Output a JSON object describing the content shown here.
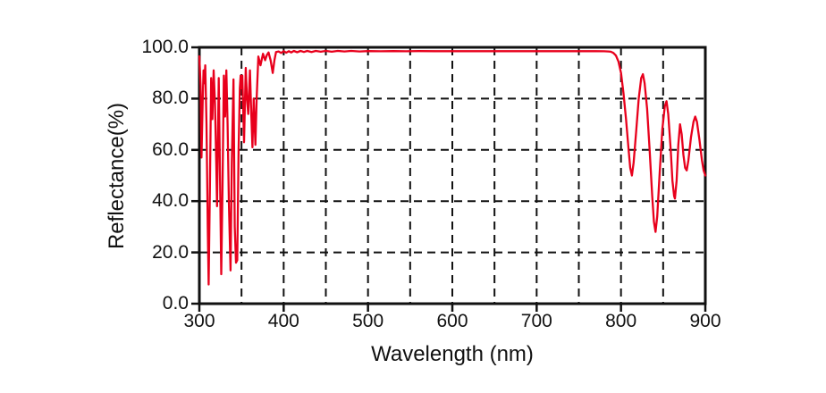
{
  "figure": {
    "background_color": "#ffffff",
    "axis_color": "#111111",
    "text_color": "#111111"
  },
  "chart_data": {
    "type": "line",
    "title": "",
    "xlabel": "Wavelength (nm)",
    "ylabel": "Reflectance(%)",
    "xlim": [
      300,
      900
    ],
    "ylim": [
      0,
      100
    ],
    "x_major_ticks": [
      300,
      400,
      500,
      600,
      700,
      800,
      900
    ],
    "x_tick_labels": [
      "300",
      "400",
      "500",
      "600",
      "700",
      "800",
      "900"
    ],
    "x_gridlines": [
      350,
      400,
      450,
      500,
      550,
      600,
      650,
      700,
      750,
      800,
      850
    ],
    "y_major_ticks": [
      0,
      20,
      40,
      60,
      80,
      100
    ],
    "y_tick_labels": [
      "0.0",
      "20.0",
      "40.0",
      "60.0",
      "80.0",
      "100.0"
    ],
    "y_gridlines": [
      20,
      40,
      60,
      80
    ],
    "grid_style": "dashed",
    "legend": "none",
    "series": [
      {
        "name": "reflectance",
        "color": "#e8001c",
        "points": [
          [
            300,
            96.5
          ],
          [
            301.5,
            85
          ],
          [
            302.5,
            57
          ],
          [
            304,
            80
          ],
          [
            305,
            91
          ],
          [
            306,
            86
          ],
          [
            307,
            93
          ],
          [
            308.5,
            70
          ],
          [
            310,
            30
          ],
          [
            311,
            7.5
          ],
          [
            312.5,
            45
          ],
          [
            314,
            88
          ],
          [
            315.5,
            72
          ],
          [
            317,
            91
          ],
          [
            318.5,
            78
          ],
          [
            320,
            55
          ],
          [
            321,
            38
          ],
          [
            322,
            65
          ],
          [
            323,
            88
          ],
          [
            324.5,
            50
          ],
          [
            326,
            11.5
          ],
          [
            327.5,
            45
          ],
          [
            329,
            89
          ],
          [
            330.5,
            73
          ],
          [
            332,
            91
          ],
          [
            333.5,
            70
          ],
          [
            335,
            40
          ],
          [
            337,
            13
          ],
          [
            338.5,
            55
          ],
          [
            340.5,
            87.5
          ],
          [
            342,
            30
          ],
          [
            343.5,
            16
          ],
          [
            345,
            17
          ],
          [
            346.5,
            60
          ],
          [
            348,
            84
          ],
          [
            349,
            89
          ],
          [
            350,
            84
          ],
          [
            351,
            89
          ],
          [
            353,
            63
          ],
          [
            355,
            92
          ],
          [
            356.5,
            80
          ],
          [
            358,
            74
          ],
          [
            360,
            91
          ],
          [
            361.5,
            75
          ],
          [
            363,
            61
          ],
          [
            364.5,
            80
          ],
          [
            366.5,
            62
          ],
          [
            368,
            80
          ],
          [
            370,
            96.4
          ],
          [
            372.5,
            93
          ],
          [
            375.5,
            97.5
          ],
          [
            378,
            95
          ],
          [
            380,
            97
          ],
          [
            382,
            98
          ],
          [
            384.5,
            95
          ],
          [
            387,
            90
          ],
          [
            389,
            95
          ],
          [
            391,
            98.2
          ],
          [
            394,
            98.4
          ],
          [
            397,
            97.8
          ],
          [
            400,
            98.5
          ],
          [
            403,
            97.9
          ],
          [
            406,
            98.5
          ],
          [
            409,
            98.0
          ],
          [
            412,
            98.6
          ],
          [
            416,
            98.1
          ],
          [
            420,
            98.6
          ],
          [
            424,
            98.2
          ],
          [
            428,
            98.6
          ],
          [
            433,
            98.2
          ],
          [
            438,
            98.6
          ],
          [
            444,
            98.3
          ],
          [
            450,
            98.6
          ],
          [
            457,
            98.3
          ],
          [
            464,
            98.6
          ],
          [
            472,
            98.4
          ],
          [
            480,
            98.6
          ],
          [
            490,
            98.4
          ],
          [
            500,
            98.55
          ],
          [
            515,
            98.45
          ],
          [
            530,
            98.55
          ],
          [
            545,
            98.45
          ],
          [
            560,
            98.55
          ],
          [
            580,
            98.5
          ],
          [
            600,
            98.5
          ],
          [
            625,
            98.5
          ],
          [
            650,
            98.5
          ],
          [
            675,
            98.5
          ],
          [
            700,
            98.5
          ],
          [
            725,
            98.5
          ],
          [
            750,
            98.5
          ],
          [
            770,
            98.5
          ],
          [
            780,
            98.45
          ],
          [
            785,
            98.4
          ],
          [
            788,
            98.3
          ],
          [
            791,
            97.8
          ],
          [
            794,
            96.8
          ],
          [
            797,
            94.5
          ],
          [
            800,
            90
          ],
          [
            803,
            82
          ],
          [
            806,
            72
          ],
          [
            809,
            60
          ],
          [
            811,
            53
          ],
          [
            813,
            50
          ],
          [
            815,
            55
          ],
          [
            818,
            67
          ],
          [
            821,
            80
          ],
          [
            824,
            88
          ],
          [
            826,
            89.5
          ],
          [
            828,
            86
          ],
          [
            831,
            76
          ],
          [
            834,
            60
          ],
          [
            837,
            42
          ],
          [
            839,
            32
          ],
          [
            841,
            28
          ],
          [
            843,
            34
          ],
          [
            846,
            52
          ],
          [
            849,
            68
          ],
          [
            852,
            77
          ],
          [
            854,
            79
          ],
          [
            856,
            74
          ],
          [
            859,
            60
          ],
          [
            861,
            48
          ],
          [
            863,
            42
          ],
          [
            864,
            41
          ],
          [
            866,
            48
          ],
          [
            868,
            62
          ],
          [
            870,
            70
          ],
          [
            872,
            66
          ],
          [
            874,
            58
          ],
          [
            876,
            53
          ],
          [
            878,
            52
          ],
          [
            880,
            56
          ],
          [
            883,
            65
          ],
          [
            886,
            71
          ],
          [
            888,
            73
          ],
          [
            890,
            71
          ],
          [
            893,
            64
          ],
          [
            896,
            56
          ],
          [
            898,
            52
          ],
          [
            900,
            50
          ]
        ]
      }
    ]
  }
}
